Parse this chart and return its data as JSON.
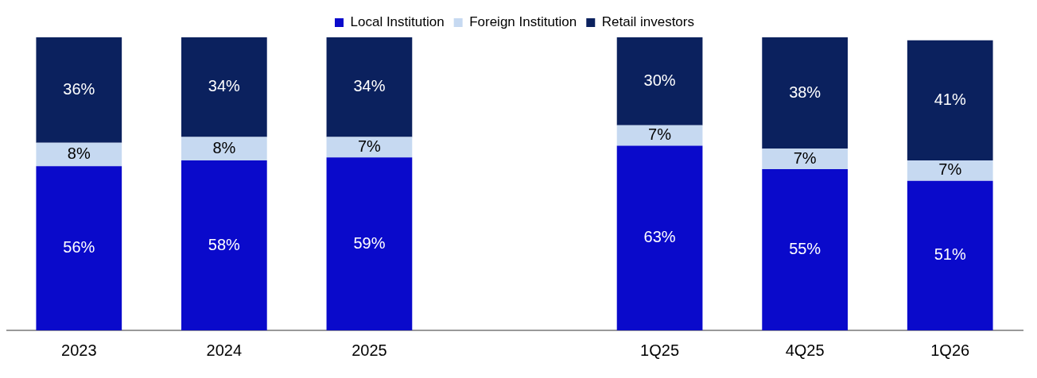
{
  "chart_data": {
    "type": "bar",
    "stacked": true,
    "categories": [
      "2023",
      "2024",
      "2025",
      null,
      "1Q25",
      "4Q25",
      "1Q26"
    ],
    "series": [
      {
        "name": "Local Institution",
        "color": "#0a0acb",
        "values": [
          56,
          58,
          59,
          null,
          63,
          55,
          51
        ],
        "value_labels": [
          "56%",
          "58%",
          "59%",
          null,
          "63%",
          "55%",
          "51%"
        ]
      },
      {
        "name": "Foreign Institution",
        "color": "#c6d9f1",
        "values": [
          8,
          8,
          7,
          null,
          7,
          7,
          7
        ],
        "value_labels": [
          "8%",
          "8%",
          "7%",
          null,
          "7%",
          "7%",
          "7%"
        ]
      },
      {
        "name": "Retail investors",
        "color": "#0b215e",
        "values": [
          36,
          34,
          34,
          null,
          30,
          38,
          41
        ],
        "value_labels": [
          "36%",
          "34%",
          "34%",
          null,
          "30%",
          "38%",
          "41%"
        ]
      }
    ],
    "ylim": [
      0,
      100
    ],
    "tick_labels": "x",
    "legend": "top",
    "grid": false
  }
}
